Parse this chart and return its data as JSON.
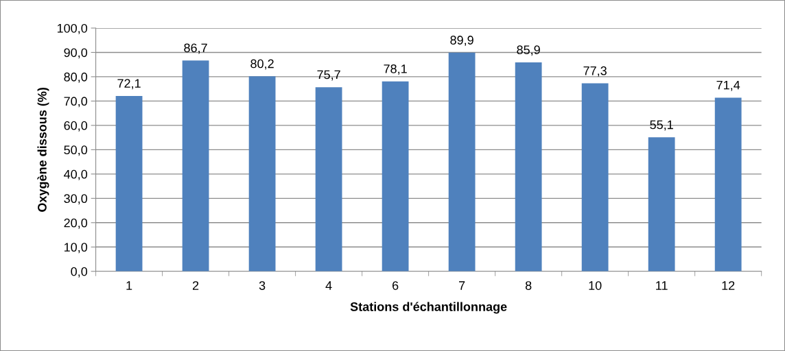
{
  "chart_data": {
    "type": "bar",
    "xlabel": "Stations d'échantillonnage",
    "ylabel": "Oxygène dissous (%)",
    "categories": [
      "1",
      "2",
      "3",
      "4",
      "6",
      "7",
      "8",
      "10",
      "11",
      "12"
    ],
    "values": [
      72.1,
      86.7,
      80.2,
      75.7,
      78.1,
      89.9,
      85.9,
      77.3,
      55.1,
      71.4
    ],
    "value_labels": [
      "72,1",
      "86,7",
      "80,2",
      "75,7",
      "78,1",
      "89,9",
      "85,9",
      "77,3",
      "55,1",
      "71,4"
    ],
    "color": "#4f81bd",
    "ylim": [
      0,
      100
    ],
    "yticks": [
      {
        "value": 0,
        "label": "0,0"
      },
      {
        "value": 10,
        "label": "10,0"
      },
      {
        "value": 20,
        "label": "20,0"
      },
      {
        "value": 30,
        "label": "30,0"
      },
      {
        "value": 40,
        "label": "40,0"
      },
      {
        "value": 50,
        "label": "50,0"
      },
      {
        "value": 60,
        "label": "60,0"
      },
      {
        "value": 70,
        "label": "70,0"
      },
      {
        "value": 80,
        "label": "80,0"
      },
      {
        "value": 90,
        "label": "90,0"
      },
      {
        "value": 100,
        "label": "100,0"
      }
    ],
    "grid": "y"
  }
}
